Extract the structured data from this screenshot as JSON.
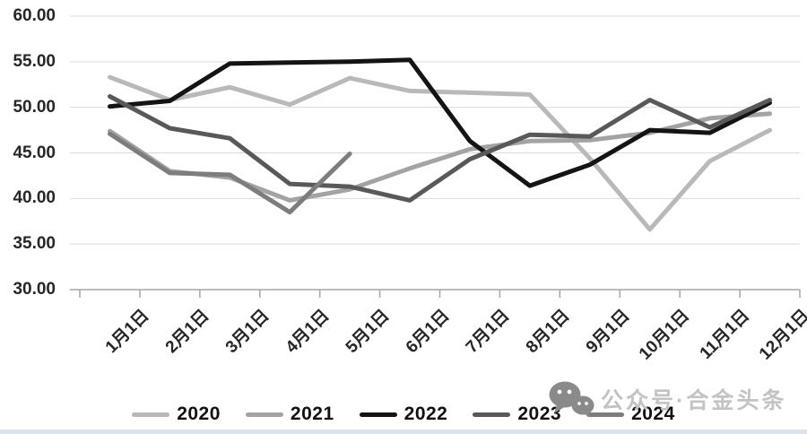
{
  "chart_data": {
    "type": "line",
    "categories": [
      "1月1日",
      "2月1日",
      "3月1日",
      "4月1日",
      "5月1日",
      "6月1日",
      "7月1日",
      "8月1日",
      "9月1日",
      "10月1日",
      "11月1日",
      "12月1日"
    ],
    "series": [
      {
        "name": "2020",
        "color": "#b9b9b9",
        "values": [
          53.3,
          50.8,
          52.2,
          50.3,
          53.2,
          51.8,
          51.6,
          51.4,
          44.4,
          36.6,
          44.1,
          47.5
        ]
      },
      {
        "name": "2021",
        "color": "#a3a3a3",
        "values": [
          47.4,
          43.0,
          42.3,
          39.8,
          41.0,
          43.3,
          45.4,
          46.3,
          46.4,
          47.2,
          48.8,
          49.3
        ]
      },
      {
        "name": "2022",
        "color": "#141414",
        "values": [
          50.1,
          50.7,
          54.8,
          54.9,
          55.0,
          55.2,
          46.3,
          41.4,
          43.7,
          47.5,
          47.2,
          50.5
        ]
      },
      {
        "name": "2023",
        "color": "#595959",
        "values": [
          51.2,
          47.7,
          46.6,
          41.6,
          41.3,
          39.8,
          44.3,
          47.0,
          46.8,
          50.8,
          47.8,
          50.8
        ]
      },
      {
        "name": "2024",
        "color": "#7d7d7d",
        "values": [
          47.1,
          42.8,
          42.6,
          38.5,
          44.9
        ]
      }
    ],
    "title": "",
    "xlabel": "",
    "ylabel": "",
    "ylim": [
      30,
      60
    ],
    "ytick_step": 5,
    "ytick_labels": [
      "60.00",
      "55.00",
      "50.00",
      "45.00",
      "40.00",
      "35.00",
      "30.00"
    ],
    "grid": true,
    "legend_position": "bottom"
  },
  "watermark": {
    "text": "公众号·合金头条"
  },
  "colors": {
    "gridline": "#d9d9d9",
    "axis": "#a6a6a6",
    "tick_label": "#262626",
    "watermark_text": "#c3c3c3",
    "watermark_icon": "#8a8a8a",
    "bottom_strip": "#d9e4f0"
  }
}
